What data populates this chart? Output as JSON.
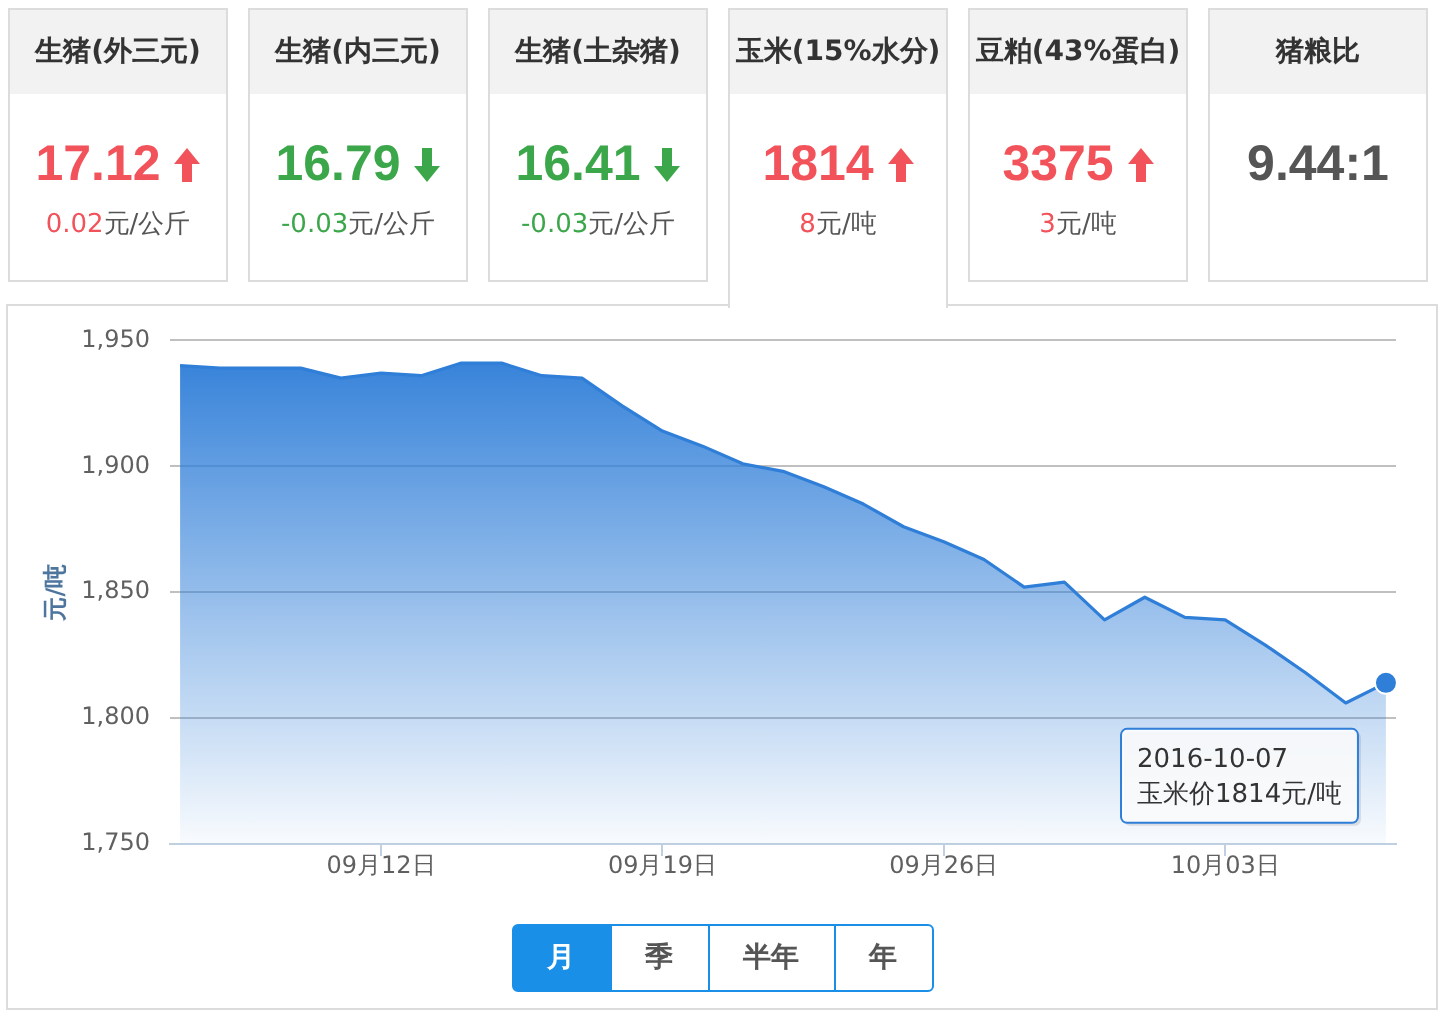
{
  "chart_data": [
    {
      "type": "other",
      "categories": [
        "生猪(外三元)",
        "生猪(内三元)",
        "生猪(土杂猪)",
        "玉米(15%水分)",
        "豆粕(43%蛋白)",
        "猪粮比"
      ],
      "annotations": [
        "17.12",
        "16.79",
        "16.41",
        "1814",
        "3375",
        "9.44:1"
      ],
      "values": [
        0.02,
        -0.03,
        -0.03,
        8,
        3,
        null
      ],
      "value_labels": [
        "0.02元/公斤",
        "-0.03元/公斤",
        "-0.03元/公斤",
        "8元/吨",
        "3元/吨",
        null
      ]
    },
    {
      "type": "area",
      "ylabel": "元/吨",
      "x": [
        "2016-09-07",
        "2016-09-08",
        "2016-09-09",
        "2016-09-10",
        "2016-09-11",
        "2016-09-12",
        "2016-09-13",
        "2016-09-14",
        "2016-09-15",
        "2016-09-16",
        "2016-09-17",
        "2016-09-18",
        "2016-09-19",
        "2016-09-20",
        "2016-09-21",
        "2016-09-22",
        "2016-09-23",
        "2016-09-24",
        "2016-09-25",
        "2016-09-26",
        "2016-09-27",
        "2016-09-28",
        "2016-09-29",
        "2016-09-30",
        "2016-10-01",
        "2016-10-02",
        "2016-10-03",
        "2016-10-04",
        "2016-10-05",
        "2016-10-06",
        "2016-10-07"
      ],
      "values": [
        1940,
        1939,
        1939,
        1939,
        1935,
        1937,
        1936,
        1941,
        1941,
        1936,
        1935,
        1924,
        1914,
        1908,
        1901,
        1898,
        1892,
        1885,
        1876,
        1870,
        1863,
        1852,
        1854,
        1839,
        1848,
        1840,
        1839,
        1829,
        1818,
        1806,
        1814
      ],
      "color": "#2f7ed8",
      "xlim": [
        "2016-09-06T18:00",
        "2016-10-07T06:00"
      ],
      "xticks": [
        {
          "value": "2016-09-12",
          "label": "09月12日"
        },
        {
          "value": "2016-09-19",
          "label": "09月19日"
        },
        {
          "value": "2016-09-26",
          "label": "09月26日"
        },
        {
          "value": "2016-10-03",
          "label": "10月03日"
        }
      ],
      "ylim": [
        1750,
        1950
      ],
      "yticks": [
        {
          "value": 1750,
          "label": "1,750"
        },
        {
          "value": 1800,
          "label": "1,800"
        },
        {
          "value": 1850,
          "label": "1,850"
        },
        {
          "value": 1900,
          "label": "1,900"
        },
        {
          "value": 1950,
          "label": "1,950"
        }
      ],
      "grid": "y",
      "annotations": [
        {
          "text": "2016-10-07\n玉米价1814元/吨",
          "x": "2016-10-07",
          "y": 1814
        },
        "月",
        "季",
        "半年",
        "年"
      ]
    }
  ]
}
